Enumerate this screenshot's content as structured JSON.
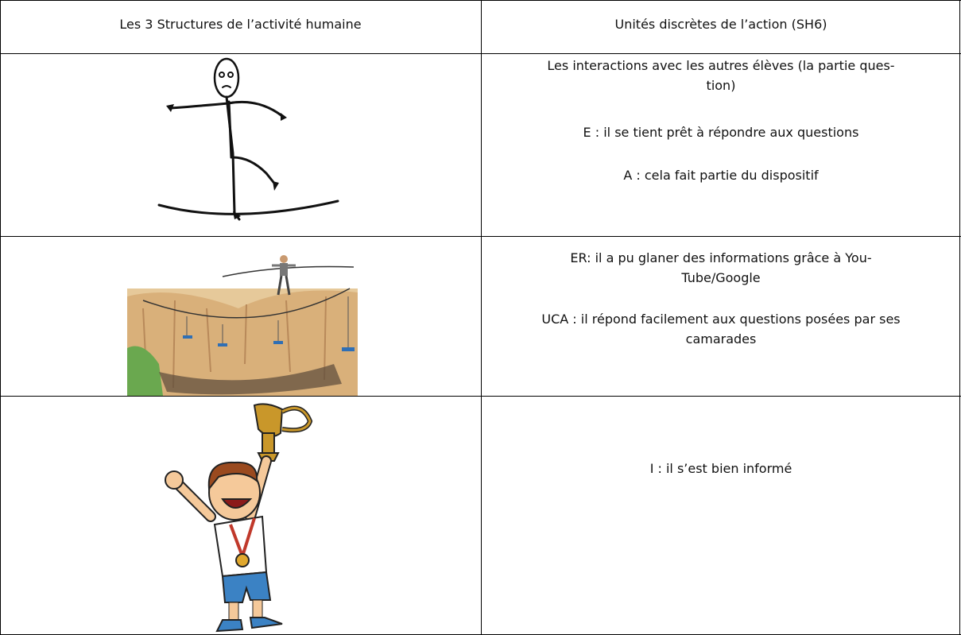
{
  "table": {
    "header": [
      "Les 3 Structures de l’activité humaine",
      "Unités discrètes de l’action (SH6)"
    ],
    "rows": [
      {
        "paragraphs": [
          [
            "Les interactions avec les autres élèves (la partie ques-",
            "tion)"
          ],
          [
            "E : il se tient prêt à répondre aux questions"
          ],
          [
            "A : cela fait partie du dispositif"
          ]
        ]
      },
      {
        "paragraphs": [
          [
            "ER: il a pu glaner des informations grâce à You-",
            "Tube/Google"
          ],
          [
            "UCA : il répond facilement aux questions posées par ses",
            "camarades"
          ]
        ]
      },
      {
        "paragraphs": [
          [
            "I : il s’est bien informé"
          ]
        ]
      }
    ]
  }
}
